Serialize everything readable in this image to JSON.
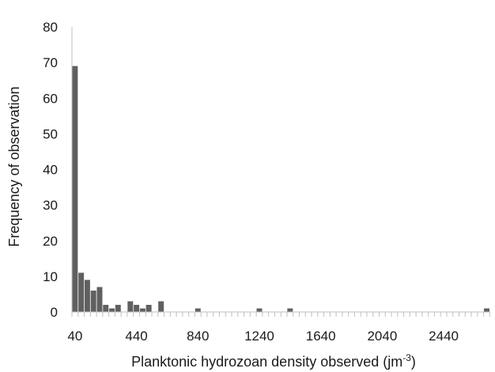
{
  "chart_data": {
    "type": "bar",
    "title": "",
    "xlabel": "Planktonic hydrozoan density observed (jm",
    "xlabel_superscript": "-3",
    "xlabel_suffix": ")",
    "ylabel": "Frequency of observation",
    "ylim": [
      0,
      80
    ],
    "yticks": [
      "0",
      "10",
      "20",
      "30",
      "40",
      "50",
      "60",
      "70",
      "80"
    ],
    "x_tick_labels": [
      "40",
      "440",
      "840",
      "1240",
      "1640",
      "2040",
      "2440"
    ],
    "x_tick_values": [
      40,
      440,
      840,
      1240,
      1640,
      2040,
      2440
    ],
    "bin_width": 40,
    "bin_start": 0,
    "num_bins": 68,
    "grid": false,
    "legend": "none",
    "bar_color": "#606060",
    "axis_color": "#bfbfbf",
    "bins": [
      {
        "x": 40,
        "value": 69
      },
      {
        "x": 80,
        "value": 11
      },
      {
        "x": 120,
        "value": 9
      },
      {
        "x": 160,
        "value": 6
      },
      {
        "x": 200,
        "value": 7
      },
      {
        "x": 240,
        "value": 2
      },
      {
        "x": 280,
        "value": 1
      },
      {
        "x": 320,
        "value": 2
      },
      {
        "x": 360,
        "value": 0
      },
      {
        "x": 400,
        "value": 3
      },
      {
        "x": 440,
        "value": 2
      },
      {
        "x": 480,
        "value": 1
      },
      {
        "x": 520,
        "value": 2
      },
      {
        "x": 560,
        "value": 0
      },
      {
        "x": 600,
        "value": 3
      },
      {
        "x": 840,
        "value": 1
      },
      {
        "x": 1240,
        "value": 1
      },
      {
        "x": 1440,
        "value": 1
      },
      {
        "x": 2720,
        "value": 1
      }
    ]
  }
}
